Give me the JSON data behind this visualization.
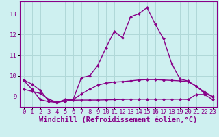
{
  "xlabel": "Windchill (Refroidissement éolien,°C)",
  "bg_color": "#cef0f0",
  "grid_color": "#b0d8d8",
  "line_color": "#880088",
  "x": [
    0,
    1,
    2,
    3,
    4,
    5,
    6,
    7,
    8,
    9,
    10,
    11,
    12,
    13,
    14,
    15,
    16,
    17,
    18,
    19,
    20,
    21,
    22,
    23
  ],
  "line1": [
    9.8,
    9.6,
    9.3,
    8.8,
    8.7,
    8.85,
    8.85,
    9.9,
    10.0,
    10.5,
    11.35,
    12.15,
    11.85,
    12.85,
    13.0,
    13.3,
    12.5,
    11.8,
    10.6,
    9.85,
    9.75,
    9.5,
    9.15,
    9.0
  ],
  "line2": [
    9.35,
    9.25,
    9.15,
    8.88,
    8.72,
    8.78,
    8.85,
    9.12,
    9.35,
    9.55,
    9.65,
    9.7,
    9.72,
    9.76,
    9.8,
    9.82,
    9.82,
    9.8,
    9.78,
    9.76,
    9.72,
    9.5,
    9.22,
    9.0
  ],
  "line3": [
    9.78,
    9.35,
    8.85,
    8.75,
    8.72,
    8.78,
    8.82,
    8.83,
    8.83,
    8.83,
    8.84,
    8.85,
    8.86,
    8.87,
    8.87,
    8.87,
    8.87,
    8.87,
    8.87,
    8.87,
    8.86,
    9.1,
    9.1,
    8.85
  ],
  "ylim": [
    8.5,
    13.6
  ],
  "yticks": [
    9,
    10,
    11,
    12,
    13
  ],
  "xticks": [
    0,
    1,
    2,
    3,
    4,
    5,
    6,
    7,
    8,
    9,
    10,
    11,
    12,
    13,
    14,
    15,
    16,
    17,
    18,
    19,
    20,
    21,
    22,
    23
  ],
  "marker": "D",
  "marker_size": 2.5,
  "linewidth": 1.0,
  "tick_fontsize": 6.5,
  "xlabel_fontsize": 7.5
}
